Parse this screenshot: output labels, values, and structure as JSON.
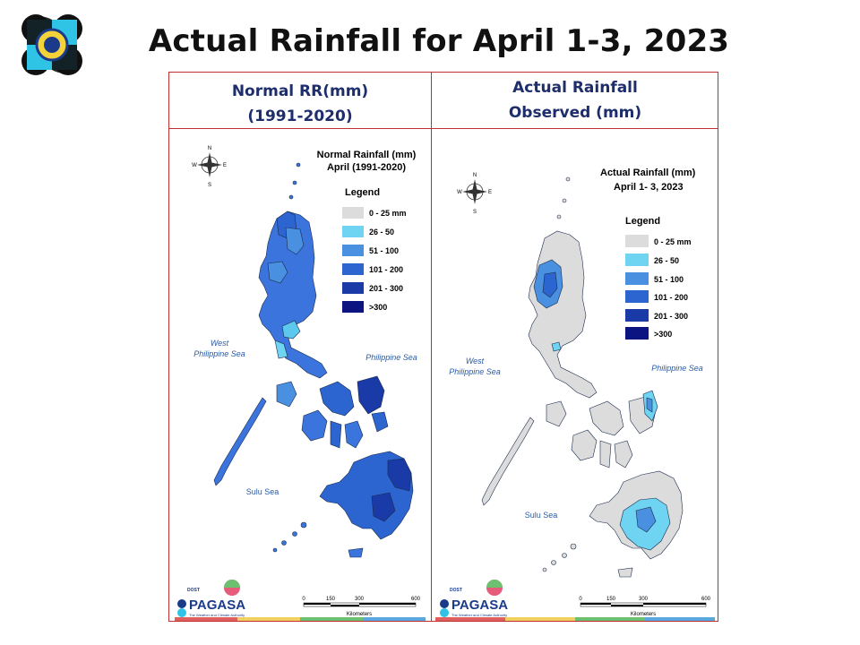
{
  "title": "Actual Rainfall for April 1-3, 2023",
  "logo_icon": "pagasa-seal-logo-icon",
  "left_panel": {
    "header_line1": "Normal RR(mm)",
    "header_line2": "(1991-2020)",
    "map_title_line1": "Normal Rainfall (mm)",
    "map_title_line2": "April (1991-2020)",
    "legend_title": "Legend",
    "west_sea_line1": "West",
    "west_sea_line2": "Philippine Sea",
    "east_sea": "Philippine Sea",
    "south_sea": "Sulu Sea",
    "scale_ticks": [
      "0",
      "150",
      "300",
      "600"
    ],
    "scale_unit": "Kilometers",
    "brand": "PAGASA",
    "brand_small": "DOST",
    "brand_tag": "The Weather and Climate Authority"
  },
  "right_panel": {
    "header_line1": "Actual Rainfall",
    "header_line2": "Observed (mm)",
    "map_title_line1": "Actual Rainfall (mm)",
    "map_title_line2": "April 1- 3, 2023",
    "legend_title": "Legend",
    "west_sea_line1": "West",
    "west_sea_line2": "Philippine Sea",
    "east_sea": "Philippine Sea",
    "south_sea": "Sulu Sea",
    "scale_ticks": [
      "0",
      "150",
      "300",
      "600"
    ],
    "scale_unit": "Kilometers",
    "brand": "PAGASA",
    "brand_small": "DOST",
    "brand_tag": "The Weather and Climate Authority"
  },
  "legend": [
    {
      "label": "0 - 25 mm",
      "color": "#dcdcdc"
    },
    {
      "label": "26 - 50",
      "color": "#6fd3f2"
    },
    {
      "label": "51 - 100",
      "color": "#4a90e0"
    },
    {
      "label": "101 - 200",
      "color": "#2c64d0"
    },
    {
      "label": "201 - 300",
      "color": "#1a3aa8"
    },
    {
      "label": ">300",
      "color": "#0b1480"
    }
  ],
  "compass": {
    "n": "N",
    "s": "S",
    "e": "E",
    "w": "W",
    "icon": "compass-rose-icon"
  },
  "bottom_bar_colors": [
    "#e06060",
    "#f2d060",
    "#6cc070",
    "#5aa8e0"
  ]
}
